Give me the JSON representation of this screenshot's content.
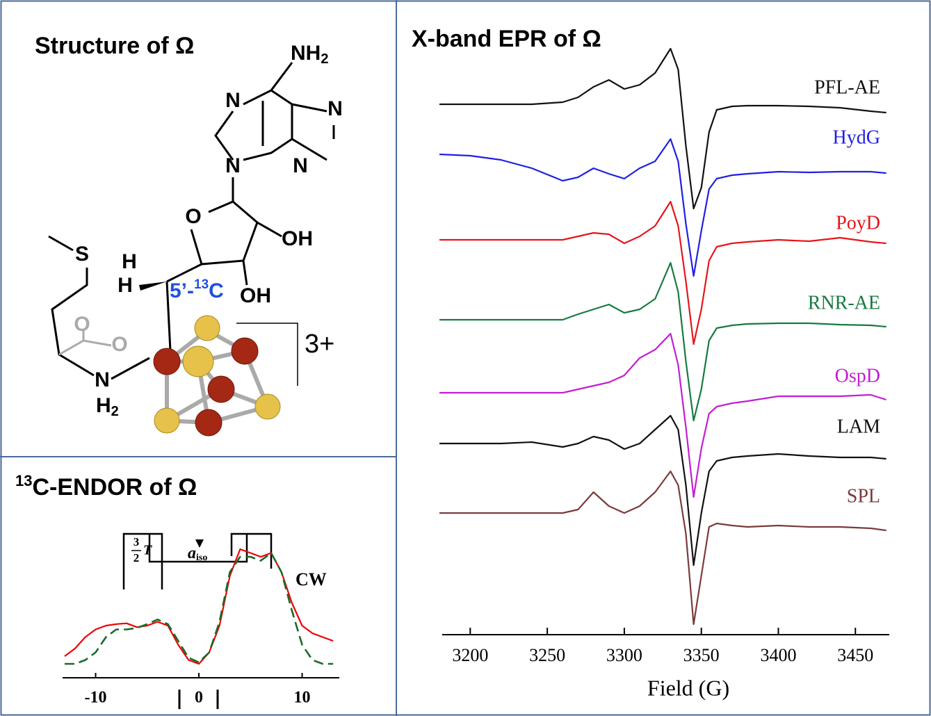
{
  "chart_data": [
    {
      "type": "line",
      "title": "X-band EPR of Ω",
      "x_label": "Field (G)",
      "x": [
        3180,
        3200,
        3220,
        3240,
        3260,
        3270,
        3280,
        3290,
        3300,
        3310,
        3320,
        3330,
        3335,
        3340,
        3345,
        3350,
        3355,
        3360,
        3370,
        3380,
        3400,
        3420,
        3440,
        3460,
        3470
      ],
      "xlim": [
        3180,
        3472
      ],
      "xticks": [
        3200,
        3250,
        3300,
        3350,
        3400,
        3450
      ],
      "series": [
        {
          "name": "PFL-AE",
          "color": "#111111",
          "values": [
            0,
            0,
            0,
            0,
            3,
            10,
            25,
            35,
            22,
            28,
            45,
            80,
            50,
            -60,
            -150,
            -120,
            -40,
            -8,
            -3,
            -2,
            -2,
            -3,
            -5,
            -10,
            -12
          ]
        },
        {
          "name": "HydG",
          "color": "#1f1fe6",
          "values": [
            0,
            -2,
            -8,
            -20,
            -38,
            -33,
            -20,
            -28,
            -35,
            -20,
            -10,
            22,
            -10,
            -100,
            -175,
            -110,
            -50,
            -35,
            -30,
            -28,
            -25,
            -26,
            -25,
            -25,
            -27
          ]
        },
        {
          "name": "PoyD",
          "color": "#e8141a",
          "values": [
            0,
            0,
            0,
            0,
            0,
            5,
            10,
            8,
            -5,
            5,
            20,
            55,
            20,
            -60,
            -150,
            -100,
            -30,
            -10,
            -5,
            -3,
            0,
            -2,
            3,
            -3,
            -5
          ]
        },
        {
          "name": "RNR-AE",
          "color": "#177a40",
          "values": [
            0,
            0,
            0,
            0,
            0,
            8,
            15,
            22,
            10,
            15,
            30,
            82,
            40,
            -60,
            -145,
            -100,
            -30,
            -12,
            -8,
            -6,
            -5,
            -5,
            -7,
            -8,
            -10
          ]
        },
        {
          "name": "OspD",
          "color": "#c21fd0",
          "values": [
            0,
            0,
            0,
            0,
            0,
            5,
            10,
            15,
            25,
            50,
            62,
            85,
            40,
            -50,
            -150,
            -80,
            -30,
            -20,
            -15,
            -12,
            -5,
            -5,
            -5,
            -3,
            -10
          ]
        },
        {
          "name": "LAM",
          "color": "#111111",
          "values": [
            0,
            0,
            0,
            2,
            -5,
            0,
            10,
            5,
            -8,
            0,
            20,
            40,
            20,
            -60,
            -175,
            -100,
            -40,
            -25,
            -20,
            -18,
            -15,
            -18,
            -20,
            -20,
            -22
          ]
        },
        {
          "name": "SPL",
          "color": "#7b3a3a",
          "values": [
            0,
            0,
            0,
            0,
            0,
            5,
            30,
            10,
            0,
            10,
            30,
            60,
            40,
            -30,
            -160,
            -90,
            -20,
            -15,
            -18,
            -20,
            -18,
            -20,
            -20,
            -22,
            -25
          ]
        }
      ]
    },
    {
      "type": "line",
      "title_sup": "13",
      "title": "C-ENDOR of Ω",
      "x": [
        -13,
        -12,
        -11,
        -10,
        -9,
        -8,
        -7,
        -6,
        -5,
        -4,
        -3,
        -2,
        -1,
        0,
        1,
        2,
        3,
        4,
        5,
        6,
        7,
        8,
        9,
        10,
        11,
        12,
        13
      ],
      "xlim": [
        -13.2,
        13.6
      ],
      "xticks": [
        -10,
        0,
        10
      ],
      "annotations": {
        "cw": "CW",
        "aiso_main": "a",
        "aiso_sub": "iso",
        "frac_num": "3",
        "frac_den": "2",
        "frac_var": "T"
      },
      "series": [
        {
          "color": "#ee0000",
          "line_style": "solid",
          "values": [
            10,
            20,
            35,
            45,
            50,
            52,
            53,
            48,
            50,
            55,
            50,
            25,
            5,
            0,
            15,
            50,
            115,
            150,
            145,
            140,
            145,
            120,
            80,
            50,
            40,
            35,
            30
          ]
        },
        {
          "color": "#1a6a2a",
          "line_style": "dashed",
          "values": [
            0,
            0,
            5,
            15,
            35,
            45,
            45,
            47,
            52,
            58,
            52,
            30,
            8,
            2,
            15,
            55,
            120,
            140,
            140,
            135,
            145,
            120,
            70,
            25,
            5,
            0,
            0
          ]
        }
      ]
    }
  ],
  "structure": {
    "title": "Structure of Ω",
    "nh": "NH",
    "nh_sub": "2",
    "n1": "N",
    "n2": "N",
    "n3": "N",
    "n4": "N",
    "o_ring": "O",
    "oh1": "OH",
    "oh2": "OH",
    "s": "S",
    "h1": "H",
    "h2": "H",
    "c_pre": "5’-",
    "c_sup": "13",
    "c_main": "C",
    "o1": "O",
    "o2": "O",
    "n_amine": "N",
    "h_amine": "H",
    "h_amine_sub": "2",
    "charge": "3+"
  }
}
